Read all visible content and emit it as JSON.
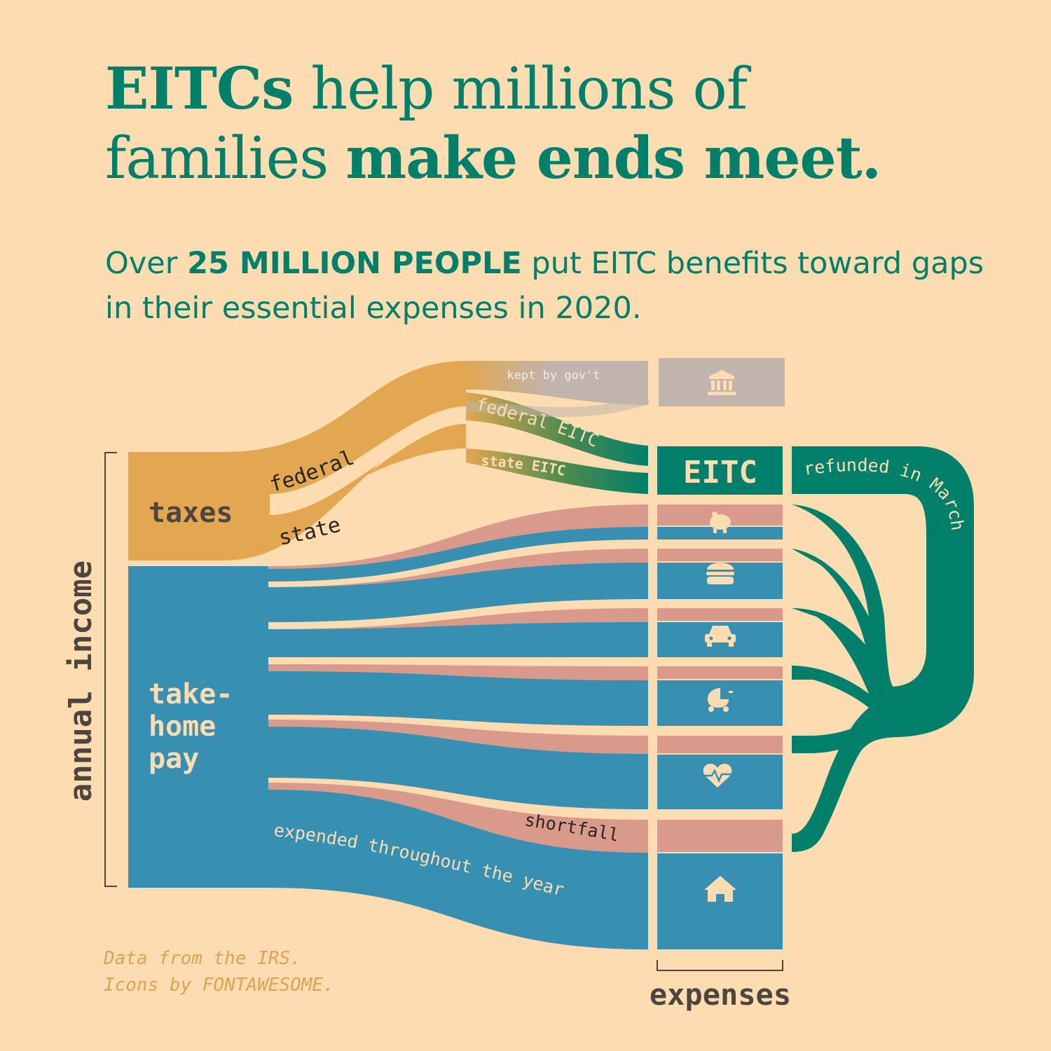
{
  "title": {
    "bold_1": "EITCs",
    "regular_1": " help millions of families ",
    "bold_2": "make ends meet."
  },
  "subtitle": {
    "regular_1": "Over ",
    "bold": "25 MILLION PEOPLE",
    "regular_2": " put EITC benefits toward gaps in their essential expenses in 2020."
  },
  "labels": {
    "annual_income": "annual income",
    "taxes": "taxes",
    "federal": "federal",
    "state": "state",
    "take_home_1": "take-",
    "take_home_2": "home",
    "take_home_3": "pay",
    "kept_by_govt": "kept by gov't",
    "federal_eitc": "federal EITC",
    "state_eitc": "state EITC",
    "eitc": "EITC",
    "refunded_in_march": "refunded in March",
    "shortfall": "shortfall",
    "expended_throughout_year": "expended throughout the year",
    "expenses": "expenses"
  },
  "expense_icons": [
    "landmark-icon",
    "piggy-bank-icon",
    "burger-icon",
    "car-icon",
    "baby-carriage-icon",
    "heartbeat-icon",
    "home-icon"
  ],
  "credits": {
    "line_1": "Data from the IRS.",
    "line_2": "Icons by FONTAWESOME."
  },
  "colors": {
    "background": "#fcdcb0",
    "taxes": "#e2a750",
    "take_home_pay": "#3790b2",
    "shortfall": "#d99a8b",
    "eitc": "#00806a",
    "government": "#c0b4ad",
    "text_dark": "#4f4540",
    "credits": "#dba353"
  }
}
